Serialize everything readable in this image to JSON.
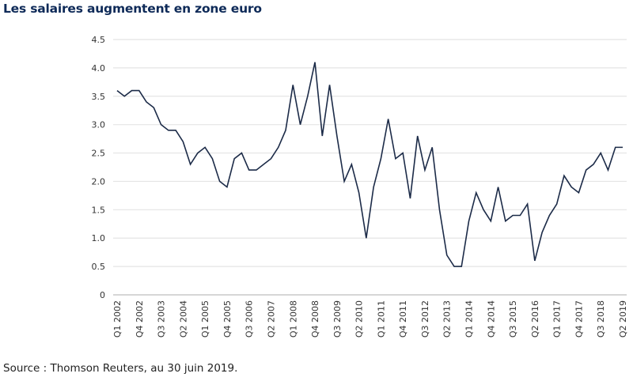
{
  "chart_data": {
    "type": "line",
    "title": "Les salaires augmentent en zone euro",
    "xlabel": "",
    "ylabel": "",
    "ylim": [
      0,
      4.5
    ],
    "yticks": [
      "0",
      "0.5",
      "1.0",
      "1.5",
      "2.0",
      "2.5",
      "3.0",
      "3.5",
      "4.0",
      "4.5"
    ],
    "ytick_values": [
      0,
      0.5,
      1.0,
      1.5,
      2.0,
      2.5,
      3.0,
      3.5,
      4.0,
      4.5
    ],
    "grid": true,
    "legend": "none",
    "x": [
      "Q1 2002",
      "Q2 2002",
      "Q3 2002",
      "Q4 2002",
      "Q1 2003",
      "Q2 2003",
      "Q3 2003",
      "Q4 2003",
      "Q1 2004",
      "Q2 2004",
      "Q3 2004",
      "Q4 2004",
      "Q1 2005",
      "Q2 2005",
      "Q3 2005",
      "Q4 2005",
      "Q1 2006",
      "Q2 2006",
      "Q3 2006",
      "Q4 2006",
      "Q1 2007",
      "Q2 2007",
      "Q3 2007",
      "Q4 2007",
      "Q1 2008",
      "Q2 2008",
      "Q3 2008",
      "Q4 2008",
      "Q1 2009",
      "Q2 2009",
      "Q3 2009",
      "Q4 2009",
      "Q1 2010",
      "Q2 2010",
      "Q3 2010",
      "Q4 2010",
      "Q1 2011",
      "Q2 2011",
      "Q3 2011",
      "Q4 2011",
      "Q1 2012",
      "Q2 2012",
      "Q3 2012",
      "Q4 2012",
      "Q1 2013",
      "Q2 2013",
      "Q3 2013",
      "Q4 2013",
      "Q1 2014",
      "Q2 2014",
      "Q3 2014",
      "Q4 2014",
      "Q1 2015",
      "Q2 2015",
      "Q3 2015",
      "Q4 2015",
      "Q1 2016",
      "Q2 2016",
      "Q3 2016",
      "Q4 2016",
      "Q1 2017",
      "Q2 2017",
      "Q3 2017",
      "Q4 2017",
      "Q1 2018",
      "Q2 2018",
      "Q3 2018",
      "Q4 2018",
      "Q1 2019",
      "Q2 2019"
    ],
    "xtick_labels": [
      "Q1 2002",
      "Q4 2002",
      "Q3 2003",
      "Q2 2004",
      "Q1 2005",
      "Q4 2005",
      "Q3 2006",
      "Q2 2007",
      "Q1 2008",
      "Q4 2008",
      "Q3 2009",
      "Q2 2010",
      "Q1 2011",
      "Q4 2011",
      "Q3 2012",
      "Q2 2013",
      "Q1 2014",
      "Q4 2014",
      "Q3 2015",
      "Q2 2016",
      "Q1 2017",
      "Q4 2017",
      "Q3 2018",
      "Q2 2019"
    ],
    "series": [
      {
        "name": "Salaires",
        "color": "#1c2b48",
        "values": [
          3.6,
          3.5,
          3.6,
          3.6,
          3.4,
          3.3,
          3.0,
          2.9,
          2.9,
          2.7,
          2.3,
          2.5,
          2.6,
          2.4,
          2.0,
          1.9,
          2.4,
          2.5,
          2.2,
          2.2,
          2.3,
          2.4,
          2.6,
          2.9,
          3.7,
          3.0,
          3.5,
          4.1,
          2.8,
          3.7,
          2.8,
          2.0,
          2.3,
          1.8,
          1.0,
          1.9,
          2.4,
          3.1,
          2.4,
          2.5,
          1.7,
          2.8,
          2.2,
          2.6,
          1.5,
          0.7,
          0.5,
          0.5,
          1.3,
          1.8,
          1.5,
          1.3,
          1.9,
          1.3,
          1.4,
          1.4,
          1.6,
          0.6,
          1.1,
          1.4,
          1.6,
          2.1,
          1.9,
          1.8,
          2.2,
          2.3,
          2.5,
          2.2,
          2.6,
          2.6
        ]
      }
    ],
    "source": "Source : Thomson Reuters, au 30 juin 2019."
  },
  "colors": {
    "title": "#0e2a58",
    "line": "#1c2b48",
    "grid": "#e4e4e4"
  }
}
